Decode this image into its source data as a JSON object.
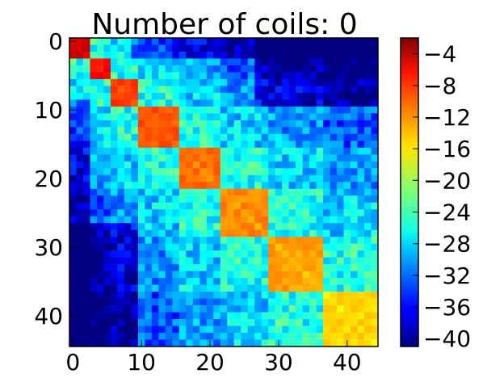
{
  "chart_data": {
    "type": "heatmap",
    "title": "Number of coils: 0",
    "xlabel": "",
    "ylabel": "",
    "n": 45,
    "x_ticks": [
      0,
      10,
      20,
      30,
      40
    ],
    "y_ticks": [
      0,
      10,
      20,
      30,
      40
    ],
    "x_tick_labels": [
      "0",
      "10",
      "20",
      "30",
      "40"
    ],
    "y_tick_labels": [
      "0",
      "10",
      "20",
      "30",
      "40"
    ],
    "colorbar": {
      "colormap": "jet",
      "vmin": -41,
      "vmax": -2,
      "ticks": [
        -4,
        -8,
        -12,
        -16,
        -20,
        -24,
        -28,
        -32,
        -36,
        -40
      ],
      "tick_labels": [
        "−4",
        "−8",
        "−12",
        "−16",
        "−20",
        "−24",
        "−28",
        "−32",
        "−36",
        "−40"
      ]
    },
    "blocks": [
      {
        "start": 0,
        "end": 2,
        "diag": -5
      },
      {
        "start": 3,
        "end": 5,
        "diag": -7
      },
      {
        "start": 6,
        "end": 9,
        "diag": -9
      },
      {
        "start": 10,
        "end": 15,
        "diag": -10
      },
      {
        "start": 16,
        "end": 21,
        "diag": -11
      },
      {
        "start": 22,
        "end": 28,
        "diag": -12
      },
      {
        "start": 29,
        "end": 36,
        "diag": -13
      },
      {
        "start": 37,
        "end": 44,
        "diag": -15
      }
    ],
    "grid": false
  }
}
